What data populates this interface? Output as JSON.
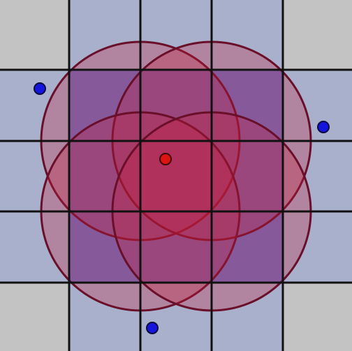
{
  "colors": {
    "background": "#c3c3c3",
    "tile_light": "#a8b0cc",
    "tile_dark": "#6b73c3",
    "grid_line": "#111111",
    "circle_fill": "#c81e3c",
    "circle_stroke": "#6a0f2a",
    "point_blue": "#1414dc",
    "point_red": "#dc1414"
  }
}
